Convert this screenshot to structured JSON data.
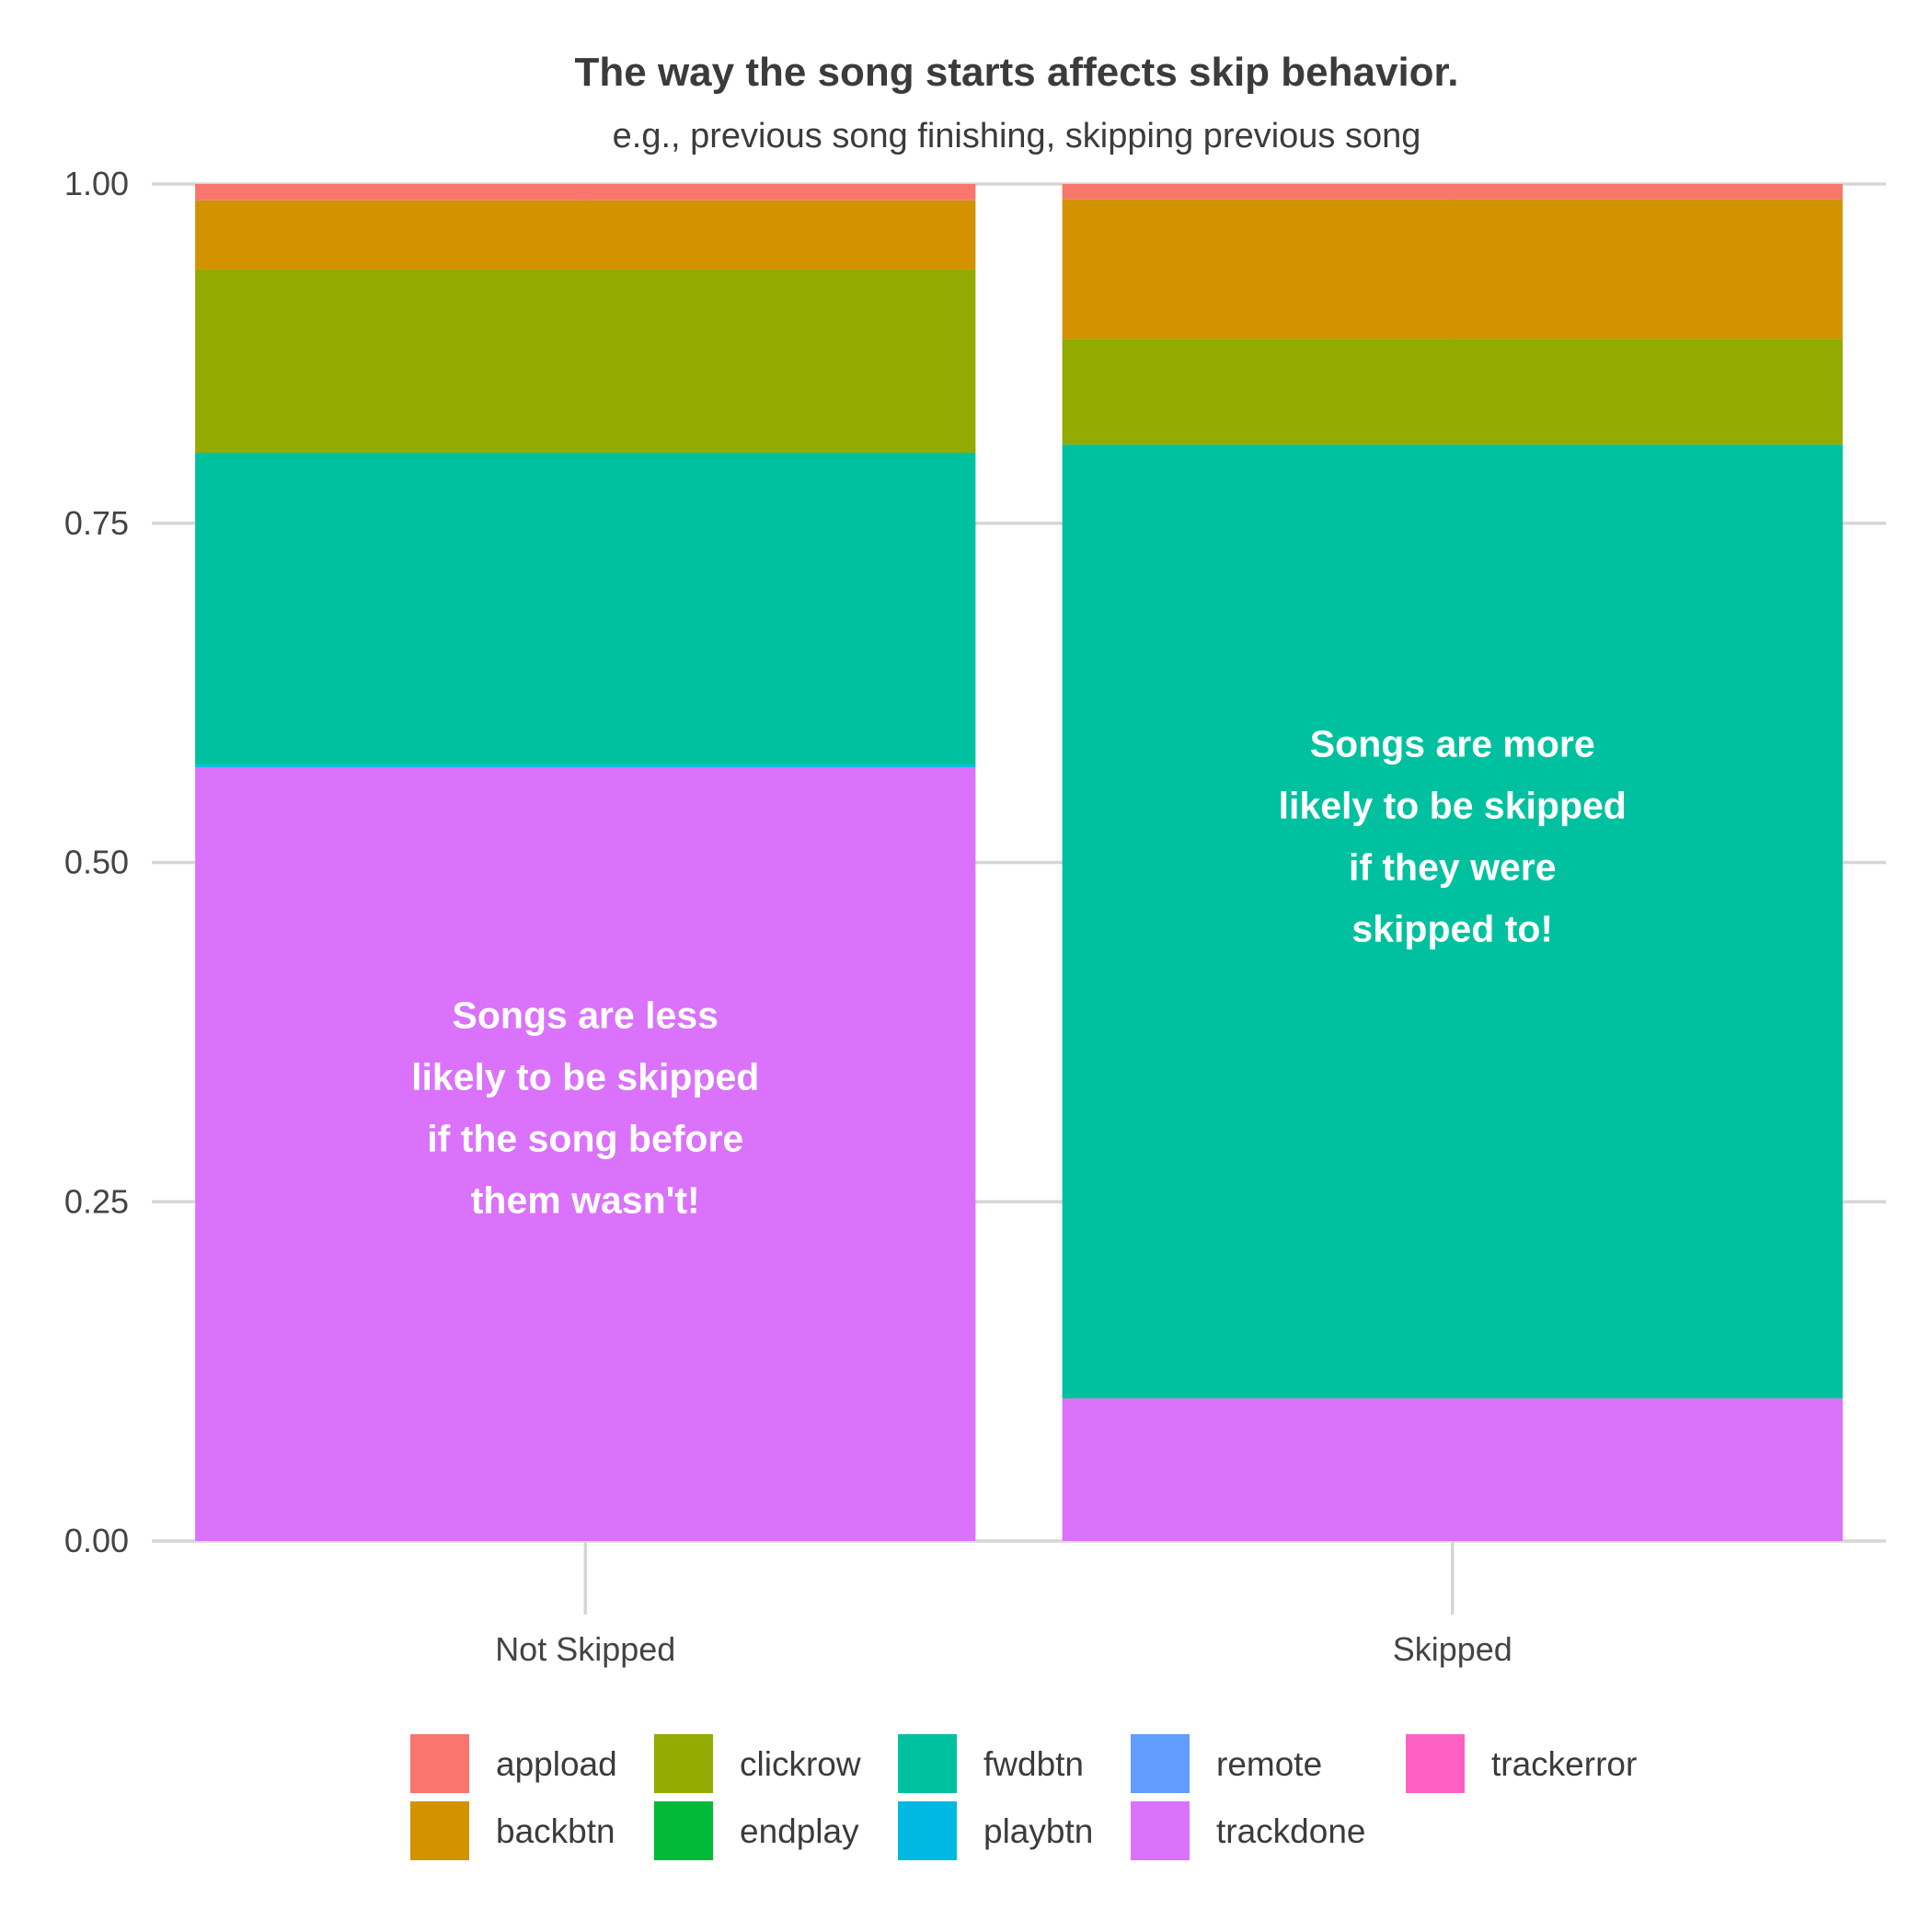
{
  "chart_data": {
    "type": "bar",
    "stacked": true,
    "title": "The way the song starts affects skip behavior.",
    "subtitle": "e.g., previous song finishing, skipping previous song",
    "xlabel": "",
    "ylabel": "",
    "ylim": [
      0,
      1
    ],
    "yticks": [
      "0.00",
      "0.25",
      "0.50",
      "0.75",
      "1.00"
    ],
    "grid": true,
    "legend_position": "bottom",
    "categories": [
      "Not Skipped",
      "Skipped"
    ],
    "series": [
      {
        "name": "trackdone",
        "color": "#DB72FB",
        "values": [
          0.57,
          0.105
        ]
      },
      {
        "name": "playbtn",
        "color": "#00B9E3",
        "values": [
          0.002,
          0.0
        ]
      },
      {
        "name": "fwdbtn",
        "color": "#00C19F",
        "values": [
          0.23,
          0.703
        ]
      },
      {
        "name": "endplay",
        "color": "#00BA38",
        "values": [
          0.0,
          0.0
        ]
      },
      {
        "name": "clickrow",
        "color": "#93AA00",
        "values": [
          0.135,
          0.078
        ]
      },
      {
        "name": "backbtn",
        "color": "#D39200",
        "values": [
          0.051,
          0.103
        ]
      },
      {
        "name": "appload",
        "color": "#F8766D",
        "values": [
          0.012,
          0.011
        ]
      },
      {
        "name": "remote",
        "color": "#619CFF",
        "values": [
          0.0,
          0.0
        ]
      },
      {
        "name": "trackerror",
        "color": "#FF61C3",
        "values": [
          0.0,
          0.0
        ]
      }
    ],
    "legend_order": [
      "appload",
      "backbtn",
      "clickrow",
      "endplay",
      "fwdbtn",
      "playbtn",
      "remote",
      "trackdone",
      "trackerror"
    ],
    "annotations": [
      {
        "category": "Not Skipped",
        "y": 0.31,
        "lines": [
          "Songs are less",
          "likely to be skipped",
          "if the song before",
          "them wasn't!"
        ]
      },
      {
        "category": "Skipped",
        "y": 0.51,
        "lines": [
          "Songs are more",
          "likely to be skipped",
          "if they were",
          "skipped to!"
        ]
      }
    ]
  }
}
